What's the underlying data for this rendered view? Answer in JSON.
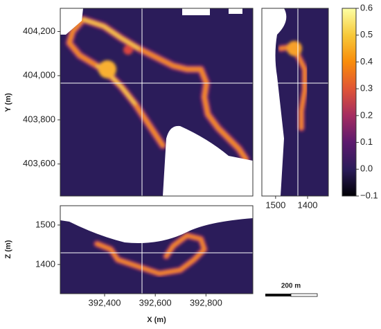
{
  "chart_data": [
    {
      "type": "heatmap",
      "ylabel": "Y (m)",
      "ylim": [
        403455,
        404305
      ],
      "yticks": [
        {
          "value": 403600,
          "label": "403,600"
        },
        {
          "value": 403800,
          "label": "403,800"
        },
        {
          "value": 404000,
          "label": "404,000"
        },
        {
          "value": 404200,
          "label": "404,200"
        }
      ]
    },
    {
      "type": "heatmap",
      "xlim": [
        1543,
        1335
      ],
      "xticks": [
        1500,
        1400
      ]
    },
    {
      "type": "heatmap",
      "xlabel": "X (m)",
      "ylabel": "Z (m)",
      "xlim": [
        392225,
        392985
      ],
      "ylim": [
        1326,
        1549
      ],
      "xticks": [
        {
          "value": 392400,
          "label": "392,400"
        },
        {
          "value": 392600,
          "label": "392,600"
        },
        {
          "value": 392800,
          "label": "392,800"
        }
      ],
      "yticks": [
        1400,
        1500
      ]
    },
    {
      "type": "colorbar",
      "ylim": [
        -0.1,
        0.6
      ],
      "yticks": [
        {
          "value": -0.1,
          "label": "−0.1"
        },
        {
          "value": 0,
          "label": "0.0"
        },
        0.1,
        0.2,
        0.3,
        0.4,
        0.5,
        0.6
      ]
    }
  ],
  "scale_bar": {
    "label": "200 m"
  }
}
